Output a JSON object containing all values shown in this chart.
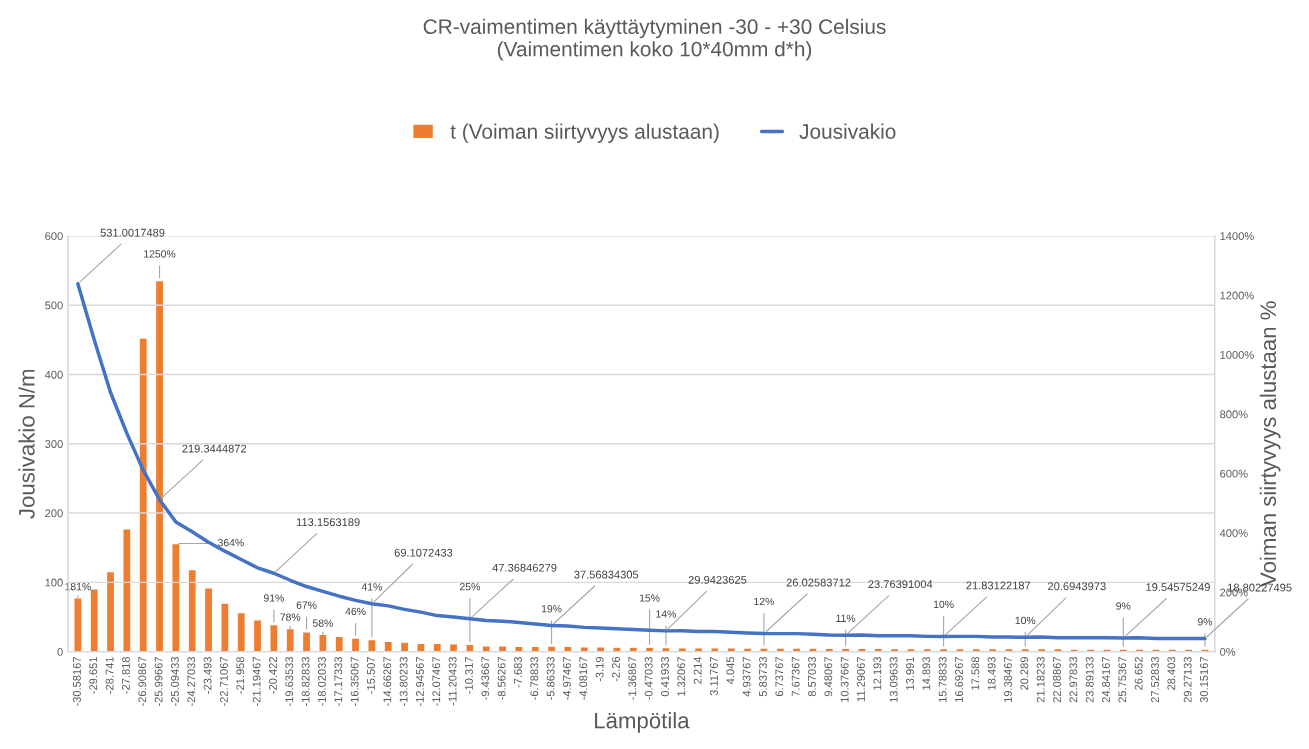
{
  "chart_data": {
    "type": "bar",
    "title": "CR-vaimentimen käyttäytyminen -30 - +30 Celsius\n(Vaimentimen koko 10*40mm d*h)",
    "xlabel": "Lämpötila",
    "ylabel": "Jousivakio N/m",
    "y2label": "Voiman siirtyvyys alustaan %",
    "categories": [
      "-30.58167",
      "-29.651",
      "-28.741",
      "-27.818",
      "-26.90867",
      "-25.99667",
      "-25.09433",
      "-24.27033",
      "-23.493",
      "-22.71067",
      "-21.958",
      "-21.19467",
      "-20.422",
      "-19.63533",
      "-18.82833",
      "-18.02033",
      "-17.17333",
      "-16.35067",
      "-15.507",
      "-14.66267",
      "-13.80233",
      "-12.94567",
      "-12.07467",
      "-11.20433",
      "-10.317",
      "-9.43667",
      "-8.56267",
      "-7.683",
      "-6.78833",
      "-5.86333",
      "-4.97467",
      "-4.08167",
      "-3.19",
      "-2.26",
      "-1.36867",
      "-0.47033",
      "0.41933",
      "1.32067",
      "2.214",
      "3.11767",
      "4.045",
      "4.93767",
      "5.83733",
      "6.73767",
      "7.67367",
      "8.57033",
      "9.48067",
      "10.37667",
      "11.29067",
      "12.193",
      "13.09633",
      "13.991",
      "14.893",
      "15.78833",
      "16.69267",
      "17.588",
      "18.493",
      "19.38467",
      "20.289",
      "21.18233",
      "22.08867",
      "22.97833",
      "23.89133",
      "24.84167",
      "25.75367",
      "26.652",
      "27.52833",
      "28.403",
      "29.27133",
      "30.15167"
    ],
    "series": [
      {
        "name": "t (Voiman siirtyvyys alustaan)",
        "axis": "y2",
        "color": "#ed7d31",
        "values": [
          181,
          212,
          270,
          414,
          1056,
          1250,
          364,
          276,
          215,
          164,
          132,
          107,
          91,
          78,
          67,
          58,
          52,
          46,
          41,
          35,
          32,
          28,
          28,
          26,
          25,
          20,
          20,
          18,
          18,
          19,
          18,
          16,
          16,
          15,
          15,
          15,
          14,
          13,
          13,
          13,
          13,
          12,
          12,
          12,
          12,
          12,
          11,
          11,
          11,
          11,
          10,
          10,
          10,
          10,
          10,
          10,
          10,
          10,
          10,
          10,
          10,
          9,
          9,
          9,
          9,
          9,
          9,
          9,
          9,
          9
        ],
        "value_labels": [
          "181%",
          null,
          null,
          null,
          null,
          "1250%",
          "364%",
          null,
          null,
          null,
          null,
          null,
          "91%",
          "78%",
          "67%",
          "58%",
          null,
          "46%",
          "41%",
          null,
          null,
          null,
          null,
          null,
          "25%",
          null,
          null,
          null,
          null,
          "19%",
          null,
          null,
          null,
          null,
          null,
          "15%",
          "14%",
          null,
          null,
          null,
          null,
          null,
          "12%",
          null,
          null,
          null,
          null,
          "11%",
          null,
          null,
          null,
          null,
          null,
          "10%",
          null,
          null,
          null,
          null,
          "10%",
          null,
          null,
          null,
          null,
          null,
          "9%",
          null,
          null,
          null,
          null,
          "9%"
        ]
      },
      {
        "name": "Jousivakio",
        "type": "line",
        "axis": "y",
        "color": "#4472c4",
        "values": [
          531.0017489,
          450,
          374,
          315,
          262,
          219.3444872,
          187,
          173,
          158,
          145,
          133,
          121,
          113.1563189,
          103,
          94,
          87,
          80,
          74,
          69.1072433,
          66,
          61,
          57,
          52,
          50,
          47.36846279,
          45,
          44,
          42,
          40,
          37.56834305,
          37,
          35,
          34,
          33,
          32,
          31,
          29.9423625,
          30,
          29,
          29,
          28,
          27,
          26.02583712,
          26,
          26,
          25,
          24,
          23.76391004,
          24,
          23,
          23,
          23,
          22,
          21.83122187,
          22,
          22,
          21,
          21,
          20.6943973,
          21,
          20,
          20,
          20,
          20,
          19.54575249,
          20,
          19,
          19,
          19,
          18.80227495
        ],
        "value_labels": [
          "531.0017489",
          null,
          null,
          null,
          null,
          "219.3444872",
          null,
          null,
          null,
          null,
          null,
          null,
          "113.1563189",
          null,
          null,
          null,
          null,
          null,
          "69.1072433",
          null,
          null,
          null,
          null,
          null,
          "47.36846279",
          null,
          null,
          null,
          null,
          "37.56834305",
          null,
          null,
          null,
          null,
          null,
          null,
          "29.9423625",
          null,
          null,
          null,
          null,
          null,
          "26.02583712",
          null,
          null,
          null,
          null,
          "23.76391004",
          null,
          null,
          null,
          null,
          null,
          "21.83122187",
          null,
          null,
          null,
          null,
          "20.6943973",
          null,
          null,
          null,
          null,
          null,
          "19.54575249",
          null,
          null,
          null,
          null,
          "18.80227495"
        ]
      }
    ],
    "ylim": [
      0,
      600
    ],
    "yticks": [
      0,
      100,
      200,
      300,
      400,
      500,
      600
    ],
    "y2lim": [
      0,
      1400
    ],
    "y2ticks": [
      {
        "value": 0,
        "label": "0%"
      },
      {
        "value": 200,
        "label": "200%"
      },
      {
        "value": 400,
        "label": "400%"
      },
      {
        "value": 600,
        "label": "600%"
      },
      {
        "value": 800,
        "label": "800%"
      },
      {
        "value": 1000,
        "label": "1000%"
      },
      {
        "value": 1200,
        "label": "1200%"
      },
      {
        "value": 1400,
        "label": "1400%"
      }
    ],
    "grid": "y",
    "legend": "top",
    "marker": "none",
    "line_style": "solid"
  }
}
